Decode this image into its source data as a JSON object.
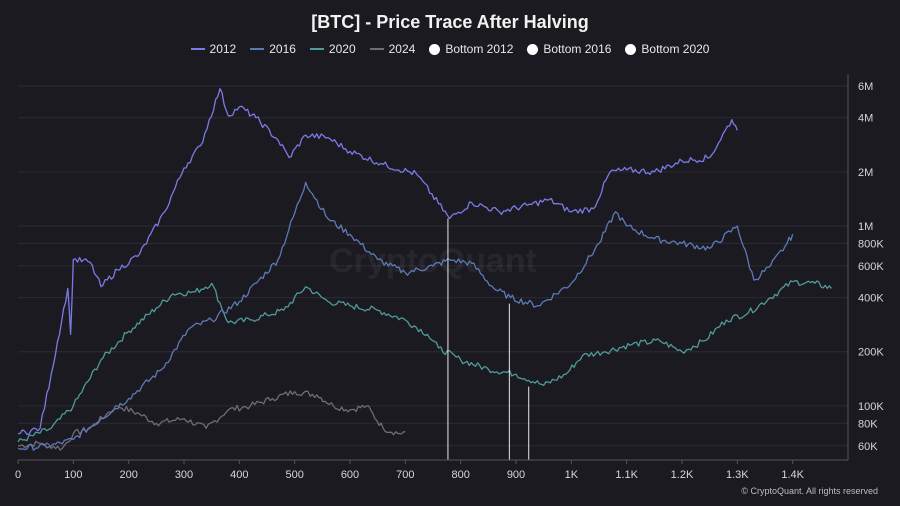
{
  "chart_data": {
    "type": "line",
    "title": "[BTC] - Price Trace After Halving",
    "xlabel": "",
    "ylabel": "",
    "xlim": [
      0,
      1500
    ],
    "ylim": [
      50000,
      7000000
    ],
    "yscale": "log",
    "x_ticks": [
      {
        "value": 0,
        "label": "0"
      },
      {
        "value": 100,
        "label": "100"
      },
      {
        "value": 200,
        "label": "200"
      },
      {
        "value": 300,
        "label": "300"
      },
      {
        "value": 400,
        "label": "400"
      },
      {
        "value": 500,
        "label": "500"
      },
      {
        "value": 600,
        "label": "600"
      },
      {
        "value": 700,
        "label": "700"
      },
      {
        "value": 800,
        "label": "800"
      },
      {
        "value": 900,
        "label": "900"
      },
      {
        "value": 1000,
        "label": "1K"
      },
      {
        "value": 1100,
        "label": "1.1K"
      },
      {
        "value": 1200,
        "label": "1.2K"
      },
      {
        "value": 1300,
        "label": "1.3K"
      },
      {
        "value": 1400,
        "label": "1.4K"
      }
    ],
    "y_ticks": [
      {
        "value": 60000,
        "label": "60K"
      },
      {
        "value": 80000,
        "label": "80K"
      },
      {
        "value": 100000,
        "label": "100K"
      },
      {
        "value": 200000,
        "label": "200K"
      },
      {
        "value": 400000,
        "label": "400K"
      },
      {
        "value": 600000,
        "label": "600K"
      },
      {
        "value": 800000,
        "label": "800K"
      },
      {
        "value": 1000000,
        "label": "1M"
      },
      {
        "value": 2000000,
        "label": "2M"
      },
      {
        "value": 4000000,
        "label": "4M"
      },
      {
        "value": 6000000,
        "label": "6M"
      }
    ],
    "series": [
      {
        "name": "2012",
        "color": "#7b7ae6",
        "points": [
          [
            0,
            70000
          ],
          [
            40,
            75000
          ],
          [
            60,
            150000
          ],
          [
            90,
            450000
          ],
          [
            95,
            250000
          ],
          [
            100,
            650000
          ],
          [
            130,
            630000
          ],
          [
            150,
            460000
          ],
          [
            180,
            570000
          ],
          [
            220,
            700000
          ],
          [
            265,
            1200000
          ],
          [
            300,
            2100000
          ],
          [
            330,
            2800000
          ],
          [
            365,
            5800000
          ],
          [
            380,
            4100000
          ],
          [
            400,
            4600000
          ],
          [
            430,
            4000000
          ],
          [
            470,
            3000000
          ],
          [
            490,
            2400000
          ],
          [
            520,
            3200000
          ],
          [
            560,
            3100000
          ],
          [
            600,
            2600000
          ],
          [
            660,
            2200000
          ],
          [
            720,
            1950000
          ],
          [
            780,
            1100000
          ],
          [
            820,
            1350000
          ],
          [
            870,
            1200000
          ],
          [
            920,
            1300000
          ],
          [
            960,
            1400000
          ],
          [
            1000,
            1200000
          ],
          [
            1040,
            1250000
          ],
          [
            1070,
            2000000
          ],
          [
            1100,
            2050000
          ],
          [
            1150,
            2000000
          ],
          [
            1200,
            2300000
          ],
          [
            1250,
            2400000
          ],
          [
            1290,
            3900000
          ],
          [
            1300,
            3400000
          ]
        ]
      },
      {
        "name": "2016",
        "color": "#5e79b8",
        "points": [
          [
            0,
            58000
          ],
          [
            60,
            60000
          ],
          [
            100,
            65000
          ],
          [
            150,
            85000
          ],
          [
            200,
            110000
          ],
          [
            260,
            160000
          ],
          [
            310,
            270000
          ],
          [
            350,
            300000
          ],
          [
            400,
            380000
          ],
          [
            470,
            650000
          ],
          [
            520,
            1750000
          ],
          [
            560,
            1100000
          ],
          [
            600,
            900000
          ],
          [
            650,
            650000
          ],
          [
            700,
            550000
          ],
          [
            750,
            600000
          ],
          [
            780,
            650000
          ],
          [
            820,
            620000
          ],
          [
            860,
            450000
          ],
          [
            890,
            400000
          ],
          [
            940,
            360000
          ],
          [
            1000,
            480000
          ],
          [
            1050,
            800000
          ],
          [
            1080,
            1200000
          ],
          [
            1100,
            1000000
          ],
          [
            1150,
            850000
          ],
          [
            1200,
            800000
          ],
          [
            1250,
            750000
          ],
          [
            1300,
            1000000
          ],
          [
            1330,
            500000
          ],
          [
            1360,
            600000
          ],
          [
            1390,
            800000
          ],
          [
            1400,
            900000
          ]
        ]
      },
      {
        "name": "2020",
        "color": "#4f9a9b",
        "points": [
          [
            0,
            63000
          ],
          [
            60,
            75000
          ],
          [
            100,
            100000
          ],
          [
            150,
            180000
          ],
          [
            200,
            260000
          ],
          [
            250,
            350000
          ],
          [
            280,
            420000
          ],
          [
            320,
            430000
          ],
          [
            350,
            480000
          ],
          [
            380,
            290000
          ],
          [
            420,
            300000
          ],
          [
            450,
            320000
          ],
          [
            480,
            340000
          ],
          [
            520,
            460000
          ],
          [
            560,
            380000
          ],
          [
            600,
            360000
          ],
          [
            650,
            340000
          ],
          [
            700,
            300000
          ],
          [
            740,
            250000
          ],
          [
            760,
            210000
          ],
          [
            800,
            180000
          ],
          [
            850,
            160000
          ],
          [
            900,
            150000
          ],
          [
            950,
            130000
          ],
          [
            990,
            150000
          ],
          [
            1020,
            190000
          ],
          [
            1060,
            200000
          ],
          [
            1110,
            220000
          ],
          [
            1160,
            230000
          ],
          [
            1200,
            200000
          ],
          [
            1240,
            230000
          ],
          [
            1280,
            300000
          ],
          [
            1320,
            330000
          ],
          [
            1360,
            400000
          ],
          [
            1400,
            490000
          ],
          [
            1440,
            480000
          ],
          [
            1470,
            450000
          ]
        ]
      },
      {
        "name": "2024",
        "color": "#6d6d72",
        "points": [
          [
            0,
            60000
          ],
          [
            40,
            62000
          ],
          [
            80,
            58000
          ],
          [
            100,
            70000
          ],
          [
            130,
            75000
          ],
          [
            160,
            90000
          ],
          [
            180,
            100000
          ],
          [
            220,
            90000
          ],
          [
            250,
            80000
          ],
          [
            300,
            85000
          ],
          [
            340,
            75000
          ],
          [
            380,
            95000
          ],
          [
            420,
            100000
          ],
          [
            460,
            110000
          ],
          [
            500,
            120000
          ],
          [
            540,
            115000
          ],
          [
            570,
            100000
          ],
          [
            600,
            95000
          ],
          [
            630,
            100000
          ],
          [
            660,
            75000
          ],
          [
            690,
            70000
          ],
          [
            700,
            72000
          ]
        ]
      }
    ],
    "bottoms": [
      {
        "name": "Bottom 2012",
        "x": 777,
        "y": 1100000
      },
      {
        "name": "Bottom 2016",
        "x": 888,
        "y": 370000
      },
      {
        "name": "Bottom 2020",
        "x": 923,
        "y": 128000
      }
    ],
    "legend": [
      "2012",
      "2016",
      "2020",
      "2024",
      "Bottom 2012",
      "Bottom 2016",
      "Bottom 2020"
    ],
    "watermark": "CryptoQuant",
    "credit": "© CryptoQuant. All rights reserved"
  }
}
